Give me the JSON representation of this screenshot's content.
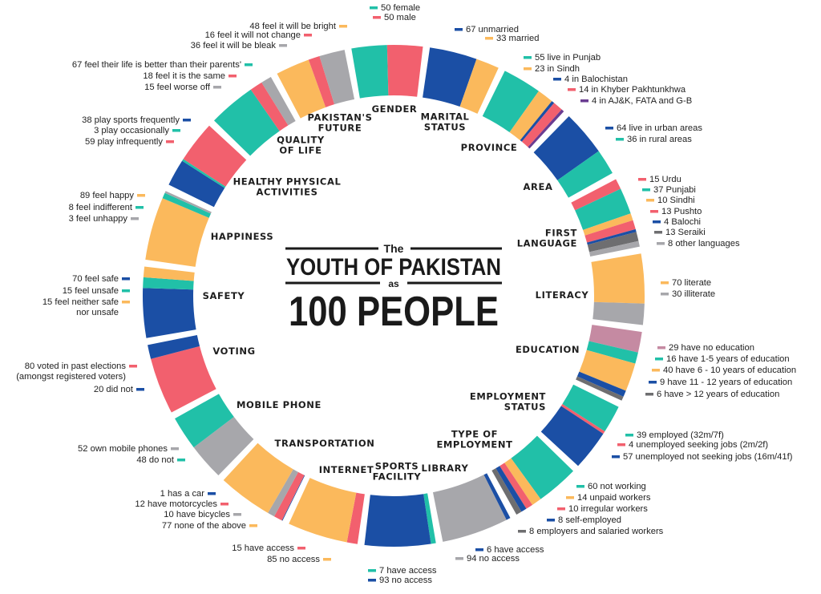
{
  "chart_data": {
    "type": "pie",
    "title": {
      "line1": "The",
      "line2": "YOUTH OF PAKISTAN",
      "line3": "as",
      "line4": "100 PEOPLE"
    },
    "colors": {
      "teal": "#21c0a8",
      "pink": "#f2606e",
      "blue": "#1b4fa5",
      "orange": "#fbb95c",
      "gray": "#a7a7ab",
      "purple": "#6a3c91",
      "darkgray": "#6e6e70",
      "mauve": "#c58aa2"
    },
    "categories": [
      {
        "name": "GENDER",
        "segments": [
          {
            "label": "50 female",
            "value": 50,
            "color": "teal"
          },
          {
            "label": "50 male",
            "value": 50,
            "color": "pink"
          }
        ]
      },
      {
        "name": "MARITAL STATUS",
        "segments": [
          {
            "label": "67 unmarried",
            "value": 67,
            "color": "blue"
          },
          {
            "label": "33 married",
            "value": 33,
            "color": "orange"
          }
        ]
      },
      {
        "name": "PROVINCE",
        "segments": [
          {
            "label": "55 live in Punjab",
            "value": 55,
            "color": "teal"
          },
          {
            "label": "23 in Sindh",
            "value": 23,
            "color": "orange"
          },
          {
            "label": "4 in Balochistan",
            "value": 4,
            "color": "blue"
          },
          {
            "label": "14 in Khyber Pakhtunkhwa",
            "value": 14,
            "color": "pink"
          },
          {
            "label": "4 in AJ&K, FATA and G-B",
            "value": 4,
            "color": "purple"
          }
        ]
      },
      {
        "name": "AREA",
        "segments": [
          {
            "label": "64 live in urban areas",
            "value": 64,
            "color": "blue"
          },
          {
            "label": "36 in rural areas",
            "value": 36,
            "color": "teal"
          }
        ]
      },
      {
        "name": "FIRST LANGUAGE",
        "segments": [
          {
            "label": "15 Urdu",
            "value": 15,
            "color": "pink"
          },
          {
            "label": "37 Punjabi",
            "value": 37,
            "color": "teal"
          },
          {
            "label": "10 Sindhi",
            "value": 10,
            "color": "orange"
          },
          {
            "label": "13 Pushto",
            "value": 13,
            "color": "pink"
          },
          {
            "label": "4 Balochi",
            "value": 4,
            "color": "blue"
          },
          {
            "label": "13 Seraiki",
            "value": 13,
            "color": "darkgray"
          },
          {
            "label": "8 other languages",
            "value": 8,
            "color": "gray"
          }
        ]
      },
      {
        "name": "LITERACY",
        "segments": [
          {
            "label": "70 literate",
            "value": 70,
            "color": "orange"
          },
          {
            "label": "30 illiterate",
            "value": 30,
            "color": "gray"
          }
        ]
      },
      {
        "name": "EDUCATION",
        "segments": [
          {
            "label": "29 have no education",
            "value": 29,
            "color": "mauve"
          },
          {
            "label": "16 have 1-5 years of education",
            "value": 16,
            "color": "teal"
          },
          {
            "label": "40 have 6 - 10 years of education",
            "value": 40,
            "color": "orange"
          },
          {
            "label": "9 have 11 - 12 years of education",
            "value": 9,
            "color": "blue"
          },
          {
            "label": "6 have > 12 years of education",
            "value": 6,
            "color": "darkgray"
          }
        ]
      },
      {
        "name": "EMPLOYMENT STATUS",
        "segments": [
          {
            "label": "39 employed (32m/7f)",
            "value": 39,
            "color": "teal"
          },
          {
            "label": "4 unemployed seeking jobs (2m/2f)",
            "value": 4,
            "color": "pink"
          },
          {
            "label": "57 unemployed not seeking jobs (16m/41f)",
            "value": 57,
            "color": "blue"
          }
        ]
      },
      {
        "name": "TYPE OF EMPLOYMENT",
        "segments": [
          {
            "label": "60 not working",
            "value": 60,
            "color": "teal"
          },
          {
            "label": "14 unpaid workers",
            "value": 14,
            "color": "orange"
          },
          {
            "label": "10 irregular workers",
            "value": 10,
            "color": "pink"
          },
          {
            "label": "8 self-employed",
            "value": 8,
            "color": "blue"
          },
          {
            "label": "8 employers and salaried workers",
            "value": 8,
            "color": "darkgray"
          }
        ]
      },
      {
        "name": "LIBRARY",
        "segments": [
          {
            "label": "6 have access",
            "value": 6,
            "color": "blue"
          },
          {
            "label": "94 no access",
            "value": 94,
            "color": "gray"
          }
        ]
      },
      {
        "name": "SPORTS FACILITY",
        "segments": [
          {
            "label": "7 have access",
            "value": 7,
            "color": "teal"
          },
          {
            "label": "93 no access",
            "value": 93,
            "color": "blue"
          }
        ]
      },
      {
        "name": "INTERNET",
        "segments": [
          {
            "label": "15 have access",
            "value": 15,
            "color": "pink"
          },
          {
            "label": "85 no access",
            "value": 85,
            "color": "orange"
          }
        ]
      },
      {
        "name": "TRANSPORTATION",
        "segments": [
          {
            "label": "1 has a car",
            "value": 1,
            "color": "blue"
          },
          {
            "label": "12 have motorcycles",
            "value": 12,
            "color": "pink"
          },
          {
            "label": "10 have bicycles",
            "value": 10,
            "color": "gray"
          },
          {
            "label": "77 none of the above",
            "value": 77,
            "color": "orange"
          }
        ]
      },
      {
        "name": "MOBILE PHONE",
        "segments": [
          {
            "label": "52 own mobile phones",
            "value": 52,
            "color": "gray"
          },
          {
            "label": "48 do not",
            "value": 48,
            "color": "teal"
          }
        ]
      },
      {
        "name": "VOTING",
        "segments": [
          {
            "label": "80 voted in past elections (amongst registered voters)",
            "value": 80,
            "color": "pink"
          },
          {
            "label": "20 did not",
            "value": 20,
            "color": "blue"
          }
        ]
      },
      {
        "name": "SAFETY",
        "segments": [
          {
            "label": "70 feel safe",
            "value": 70,
            "color": "blue"
          },
          {
            "label": "15 feel unsafe",
            "value": 15,
            "color": "teal"
          },
          {
            "label": "15 feel neither safe nor unsafe",
            "value": 15,
            "color": "orange"
          }
        ]
      },
      {
        "name": "HAPPINESS",
        "segments": [
          {
            "label": "89 feel happy",
            "value": 89,
            "color": "orange"
          },
          {
            "label": "8 feel indifferent",
            "value": 8,
            "color": "teal"
          },
          {
            "label": "3 feel unhappy",
            "value": 3,
            "color": "gray"
          }
        ]
      },
      {
        "name": "HEALTHY PHYSICAL ACTIVITIES",
        "segments": [
          {
            "label": "38 play sports frequently",
            "value": 38,
            "color": "blue"
          },
          {
            "label": "3 play occasionally",
            "value": 3,
            "color": "teal"
          },
          {
            "label": "59 play infrequently",
            "value": 59,
            "color": "pink"
          }
        ]
      },
      {
        "name": "QUALITY OF LIFE",
        "segments": [
          {
            "label": "67 feel their life is better than their parents'",
            "value": 67,
            "color": "teal"
          },
          {
            "label": "18 feel it is the same",
            "value": 18,
            "color": "pink"
          },
          {
            "label": "15 feel worse off",
            "value": 15,
            "color": "gray"
          }
        ]
      },
      {
        "name": "PAKISTAN'S FUTURE",
        "segments": [
          {
            "label": "48 feel it will be bright",
            "value": 48,
            "color": "orange"
          },
          {
            "label": "16 feel it will not change",
            "value": 16,
            "color": "pink"
          },
          {
            "label": "36 feel it will be bleak",
            "value": 36,
            "color": "gray"
          }
        ]
      }
    ]
  }
}
